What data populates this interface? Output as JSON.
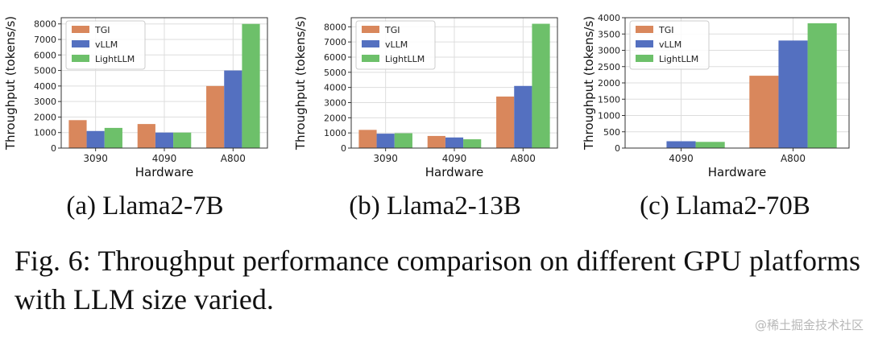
{
  "colors": {
    "TGI": "#d9875c",
    "vLLM": "#5470c0",
    "LightLLM": "#6dc06a",
    "grid": "#dddddd",
    "axis": "#333333"
  },
  "chart_data": [
    {
      "type": "bar",
      "caption": "(a) Llama2-7B",
      "xlabel": "Hardware",
      "ylabel": "Throughput (tokens/s)",
      "categories": [
        "3090",
        "4090",
        "A800"
      ],
      "ylim": [
        0,
        8400
      ],
      "yticks": [
        0,
        1000,
        2000,
        3000,
        4000,
        5000,
        6000,
        7000,
        8000
      ],
      "legend": "top-left",
      "grid": true,
      "series": [
        {
          "name": "TGI",
          "values": [
            1800,
            1550,
            4000
          ]
        },
        {
          "name": "vLLM",
          "values": [
            1100,
            1000,
            5000
          ]
        },
        {
          "name": "LightLLM",
          "values": [
            1300,
            1000,
            8000
          ]
        }
      ]
    },
    {
      "type": "bar",
      "caption": "(b) Llama2-13B",
      "xlabel": "Hardware",
      "ylabel": "Throughput (tokens/s)",
      "categories": [
        "3090",
        "4090",
        "A800"
      ],
      "ylim": [
        0,
        8600
      ],
      "yticks": [
        0,
        1000,
        2000,
        3000,
        4000,
        5000,
        6000,
        7000,
        8000
      ],
      "legend": "top-left",
      "grid": true,
      "series": [
        {
          "name": "TGI",
          "values": [
            1200,
            800,
            3400
          ]
        },
        {
          "name": "vLLM",
          "values": [
            950,
            700,
            4100
          ]
        },
        {
          "name": "LightLLM",
          "values": [
            980,
            580,
            8200
          ]
        }
      ]
    },
    {
      "type": "bar",
      "caption": "(c) Llama2-70B",
      "xlabel": "Hardware",
      "ylabel": "Throughput (tokens/s)",
      "categories": [
        "4090",
        "A800"
      ],
      "ylim": [
        0,
        4000
      ],
      "yticks": [
        0,
        500,
        1000,
        1500,
        2000,
        2500,
        3000,
        3500,
        4000
      ],
      "legend": "top-left",
      "grid": true,
      "series": [
        {
          "name": "TGI",
          "values": [
            0,
            2220
          ]
        },
        {
          "name": "vLLM",
          "values": [
            210,
            3300
          ]
        },
        {
          "name": "LightLLM",
          "values": [
            190,
            3830
          ]
        }
      ]
    }
  ],
  "figure_caption": "Fig. 6: Throughput performance comparison on different GPU platforms with LLM size varied.",
  "watermark": "@稀土掘金技术社区"
}
